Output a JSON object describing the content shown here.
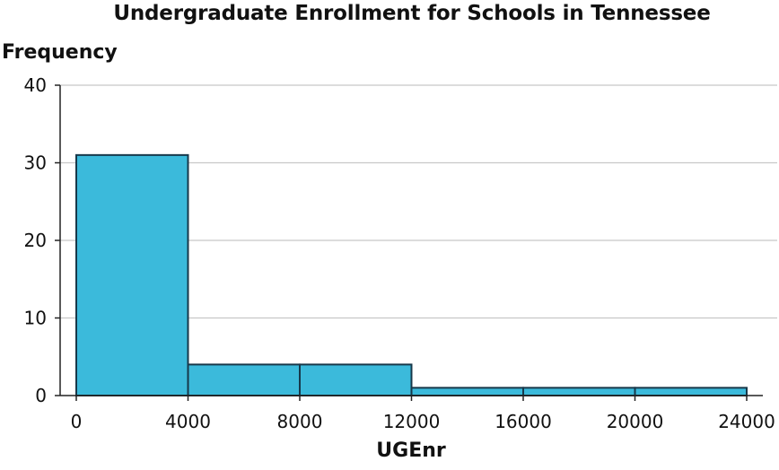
{
  "chart_data": {
    "type": "histogram",
    "title": "Undergraduate Enrollment for Schools in Tennessee",
    "xlabel": "UGEnr",
    "ylabel": "Frequency",
    "bin_edges": [
      0,
      4000,
      8000,
      12000,
      16000,
      20000,
      24000
    ],
    "bars": [
      {
        "x0": 0,
        "x1": 4000,
        "value": 31
      },
      {
        "x0": 4000,
        "x1": 8000,
        "value": 4
      },
      {
        "x0": 8000,
        "x1": 12000,
        "value": 4
      },
      {
        "x0": 12000,
        "x1": 16000,
        "value": 1
      },
      {
        "x0": 16000,
        "x1": 20000,
        "value": 1
      },
      {
        "x0": 20000,
        "x1": 24000,
        "value": 1
      }
    ],
    "xlim": [
      0,
      24000
    ],
    "ylim": [
      0,
      40
    ],
    "xticks": [
      "0",
      "4000",
      "8000",
      "12000",
      "16000",
      "20000",
      "24000"
    ],
    "xtick_values": [
      0,
      4000,
      8000,
      12000,
      16000,
      20000,
      24000
    ],
    "yticks": [
      "0",
      "10",
      "20",
      "30",
      "40"
    ],
    "ytick_values": [
      0,
      10,
      20,
      30,
      40
    ],
    "grid": "horizontal",
    "bar_color": "#3BBADB",
    "bar_edge_color": "#17384A",
    "grid_color": "#C8C8C8"
  }
}
